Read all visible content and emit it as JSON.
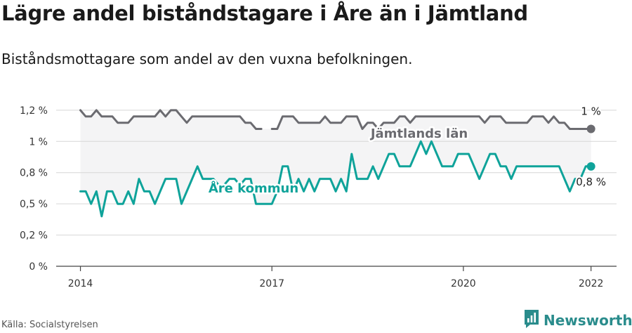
{
  "header": {
    "title": "Lägre andel biståndstagare i Åre än i Jämtland",
    "subtitle": "Biståndsmottagare som andel av den vuxna befolkningen."
  },
  "footer": {
    "source": "Källa: Socialstyrelsen",
    "brand": "Newsworthy",
    "brand_icon": "newsworthy-logo-icon"
  },
  "colors": {
    "jamtland": "#6b6b70",
    "are": "#0fa39a",
    "band": "#f4f4f5",
    "grid": "#d6d6d6"
  },
  "chart_data": {
    "type": "line",
    "xlabel": "",
    "ylabel": "",
    "ylim": [
      0,
      1.3
    ],
    "grid": "horizontal",
    "y_ticks": [
      {
        "v": 0,
        "label": "0 %"
      },
      {
        "v": 0.25,
        "label": "0,2 %"
      },
      {
        "v": 0.5,
        "label": "0,5 %"
      },
      {
        "v": 0.75,
        "label": "0,8 %"
      },
      {
        "v": 1.0,
        "label": "1 %"
      },
      {
        "v": 1.25,
        "label": "1,2 %"
      }
    ],
    "x_ticks": [
      {
        "v": 2014.0,
        "label": "2014"
      },
      {
        "v": 2017.0,
        "label": "2017"
      },
      {
        "v": 2020.0,
        "label": "2020"
      },
      {
        "v": 2022.0,
        "label": "2022"
      }
    ],
    "xlim": [
      2013.62,
      2022.4
    ],
    "series": [
      {
        "key": "jamtland",
        "name": "Jämtlands län",
        "end_label": "1 %",
        "x": [
          2014.0,
          2014.0833,
          2014.1667,
          2014.25,
          2014.3333,
          2014.4167,
          2014.5,
          2014.5833,
          2014.6667,
          2014.75,
          2014.8333,
          2014.9167,
          2015.0,
          2015.0833,
          2015.1667,
          2015.25,
          2015.3333,
          2015.4167,
          2015.5,
          2015.5833,
          2015.6667,
          2015.75,
          2015.8333,
          2015.9167,
          2016.0,
          2016.0833,
          2016.1667,
          2016.25,
          2016.3333,
          2016.4167,
          2016.5,
          2016.5833,
          2016.6667,
          2016.75,
          2016.8333,
          2016.9167,
          2017.0,
          2017.0833,
          2017.1667,
          2017.25,
          2017.3333,
          2017.4167,
          2017.5,
          2017.5833,
          2017.6667,
          2017.75,
          2017.8333,
          2017.9167,
          2018.0,
          2018.0833,
          2018.1667,
          2018.25,
          2018.3333,
          2018.4167,
          2018.5,
          2018.5833,
          2018.6667,
          2018.75,
          2018.8333,
          2018.9167,
          2019.0,
          2019.0833,
          2019.1667,
          2019.25,
          2019.3333,
          2019.4167,
          2019.5,
          2019.5833,
          2019.6667,
          2019.75,
          2019.8333,
          2019.9167,
          2020.0,
          2020.0833,
          2020.1667,
          2020.25,
          2020.3333,
          2020.4167,
          2020.5,
          2020.5833,
          2020.6667,
          2020.75,
          2020.8333,
          2020.9167,
          2021.0,
          2021.0833,
          2021.1667,
          2021.25,
          2021.3333,
          2021.4167,
          2021.5,
          2021.5833,
          2021.6667,
          2021.75,
          2021.8333,
          2021.9167,
          2022.0
        ],
        "y": [
          1.25,
          1.2,
          1.2,
          1.25,
          1.2,
          1.2,
          1.2,
          1.15,
          1.15,
          1.15,
          1.2,
          1.2,
          1.2,
          1.2,
          1.2,
          1.25,
          1.2,
          1.25,
          1.25,
          1.2,
          1.15,
          1.2,
          1.2,
          1.2,
          1.2,
          1.2,
          1.2,
          1.2,
          1.2,
          1.2,
          1.2,
          1.15,
          1.15,
          1.1,
          1.1,
          null,
          1.1,
          1.1,
          1.2,
          1.2,
          1.2,
          1.15,
          1.15,
          1.15,
          1.15,
          1.15,
          1.2,
          1.15,
          1.15,
          1.15,
          1.2,
          1.2,
          1.2,
          1.1,
          1.15,
          1.15,
          1.1,
          1.15,
          1.15,
          1.15,
          1.2,
          1.2,
          1.15,
          1.2,
          1.2,
          1.2,
          1.2,
          1.2,
          1.2,
          1.2,
          1.2,
          1.2,
          1.2,
          1.2,
          1.2,
          1.2,
          1.15,
          1.2,
          1.2,
          1.2,
          1.15,
          1.15,
          1.15,
          1.15,
          1.15,
          1.2,
          1.2,
          1.2,
          1.15,
          1.2,
          1.15,
          1.15,
          1.1,
          1.1,
          1.1,
          1.1,
          1.1
        ]
      },
      {
        "key": "are",
        "name": "Åre kommun",
        "end_label": "0,8 %",
        "x": [
          2014.0,
          2014.0833,
          2014.1667,
          2014.25,
          2014.3333,
          2014.4167,
          2014.5,
          2014.5833,
          2014.6667,
          2014.75,
          2014.8333,
          2014.9167,
          2015.0,
          2015.0833,
          2015.1667,
          2015.25,
          2015.3333,
          2015.4167,
          2015.5,
          2015.5833,
          2015.6667,
          2015.75,
          2015.8333,
          2015.9167,
          2016.0,
          2016.0833,
          2016.1667,
          2016.25,
          2016.3333,
          2016.4167,
          2016.5,
          2016.5833,
          2016.6667,
          2016.75,
          2016.8333,
          2016.9167,
          2017.0,
          2017.0833,
          2017.1667,
          2017.25,
          2017.3333,
          2017.4167,
          2017.5,
          2017.5833,
          2017.6667,
          2017.75,
          2017.8333,
          2017.9167,
          2018.0,
          2018.0833,
          2018.1667,
          2018.25,
          2018.3333,
          2018.4167,
          2018.5,
          2018.5833,
          2018.6667,
          2018.75,
          2018.8333,
          2018.9167,
          2019.0,
          2019.0833,
          2019.1667,
          2019.25,
          2019.3333,
          2019.4167,
          2019.5,
          2019.5833,
          2019.6667,
          2019.75,
          2019.8333,
          2019.9167,
          2020.0,
          2020.0833,
          2020.1667,
          2020.25,
          2020.3333,
          2020.4167,
          2020.5,
          2020.5833,
          2020.6667,
          2020.75,
          2020.8333,
          2020.9167,
          2021.0,
          2021.0833,
          2021.1667,
          2021.25,
          2021.3333,
          2021.4167,
          2021.5,
          2021.5833,
          2021.6667,
          2021.75,
          2021.8333,
          2021.9167,
          2022.0
        ],
        "y": [
          0.6,
          0.6,
          0.5,
          0.6,
          0.4,
          0.6,
          0.6,
          0.5,
          0.5,
          0.6,
          0.5,
          0.7,
          0.6,
          0.6,
          0.5,
          0.6,
          0.7,
          0.7,
          0.7,
          0.5,
          0.6,
          0.7,
          0.8,
          0.7,
          0.7,
          0.7,
          0.65,
          0.65,
          0.7,
          0.7,
          0.65,
          0.7,
          0.7,
          0.5,
          0.5,
          0.5,
          0.5,
          0.6,
          0.8,
          0.8,
          0.6,
          0.7,
          0.6,
          0.7,
          0.6,
          0.7,
          0.7,
          0.7,
          0.6,
          0.7,
          0.6,
          0.9,
          0.7,
          0.7,
          0.7,
          0.8,
          0.7,
          0.8,
          0.9,
          0.9,
          0.8,
          0.8,
          0.8,
          0.9,
          1.0,
          0.9,
          1.0,
          0.9,
          0.8,
          0.8,
          0.8,
          0.9,
          0.9,
          0.9,
          0.8,
          0.7,
          0.8,
          0.9,
          0.9,
          0.8,
          0.8,
          0.7,
          0.8,
          0.8,
          0.8,
          0.8,
          0.8,
          0.8,
          0.8,
          0.8,
          0.8,
          0.7,
          0.6,
          0.7,
          0.7,
          0.8,
          0.8
        ]
      }
    ]
  }
}
